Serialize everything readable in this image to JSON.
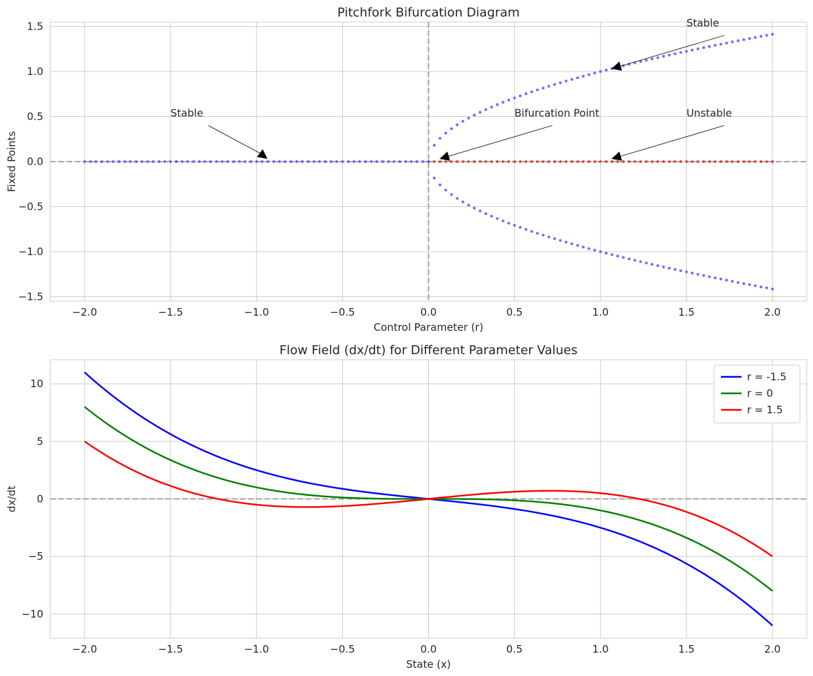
{
  "chart_data": [
    {
      "type": "scatter",
      "title": "Pitchfork Bifurcation Diagram",
      "xlabel": "Control Parameter (r)",
      "ylabel": "Fixed Points",
      "xlim": [
        -2.2,
        2.2
      ],
      "ylim": [
        -1.55,
        1.55
      ],
      "xticks": [
        -2.0,
        -1.5,
        -1.0,
        -0.5,
        0.0,
        0.5,
        1.0,
        1.5,
        2.0
      ],
      "xtick_labels": [
        "−2.0",
        "−1.5",
        "−1.0",
        "−0.5",
        "0.0",
        "0.5",
        "1.0",
        "1.5",
        "2.0"
      ],
      "yticks": [
        -1.5,
        -1.0,
        -0.5,
        0.0,
        0.5,
        1.0,
        1.5
      ],
      "ytick_labels": [
        "−1.5",
        "−1.0",
        "−0.5",
        "0.0",
        "0.5",
        "1.0",
        "1.5"
      ],
      "grid": true,
      "reference_lines": {
        "horizontal_y": 0,
        "vertical_x": 0
      },
      "series": [
        {
          "color": "#5555ff",
          "x_range": [
            -2.0,
            0.0
          ],
          "formula": "0",
          "points": 61
        },
        {
          "color": "#5555ff",
          "x_range": [
            0.0,
            2.0
          ],
          "formula": "sqrt(r)",
          "points": 61
        },
        {
          "color": "#5555ff",
          "x_range": [
            0.0,
            2.0
          ],
          "formula": "-sqrt(r)",
          "points": 61
        },
        {
          "color": "#d83030",
          "x_range": [
            0.0,
            2.0
          ],
          "formula": "0",
          "points": 61
        }
      ],
      "annotations": [
        {
          "text": "Stable",
          "xy": [
            -1.0,
            0.0
          ],
          "xytext": [
            -1.5,
            0.5
          ]
        },
        {
          "text": "Bifurcation Point",
          "xy": [
            0.0,
            0.0
          ],
          "xytext": [
            0.5,
            0.5
          ]
        },
        {
          "text": "Stable",
          "xy": [
            1.0,
            1.0
          ],
          "xytext": [
            1.5,
            1.5
          ]
        },
        {
          "text": "Unstable",
          "xy": [
            1.0,
            0.0
          ],
          "xytext": [
            1.5,
            0.5
          ]
        }
      ]
    },
    {
      "type": "line",
      "title": "Flow Field (dx/dt) for Different Parameter Values",
      "xlabel": "State (x)",
      "ylabel": "dx/dt",
      "xlim": [
        -2.2,
        2.2
      ],
      "ylim": [
        -12.1,
        12.1
      ],
      "xticks": [
        -2.0,
        -1.5,
        -1.0,
        -0.5,
        0.0,
        0.5,
        1.0,
        1.5,
        2.0
      ],
      "xtick_labels": [
        "−2.0",
        "−1.5",
        "−1.0",
        "−0.5",
        "0.0",
        "0.5",
        "1.0",
        "1.5",
        "2.0"
      ],
      "yticks": [
        -10,
        -5,
        0,
        5,
        10
      ],
      "ytick_labels": [
        "−10",
        "−5",
        "0",
        "5",
        "10"
      ],
      "grid": true,
      "reference_lines": {
        "horizontal_y": 0
      },
      "legend_position": "top-right",
      "series": [
        {
          "name": "r = -1.5",
          "r": -1.5,
          "color": "#0000ff",
          "x_range": [
            -2.0,
            2.0
          ],
          "formula": "r*x - x^3"
        },
        {
          "name": "r = 0",
          "r": 0,
          "color": "#008000",
          "x_range": [
            -2.0,
            2.0
          ],
          "formula": "r*x - x^3"
        },
        {
          "name": "r = 1.5",
          "r": 1.5,
          "color": "#ff0000",
          "x_range": [
            -2.0,
            2.0
          ],
          "formula": "r*x - x^3"
        }
      ]
    }
  ]
}
